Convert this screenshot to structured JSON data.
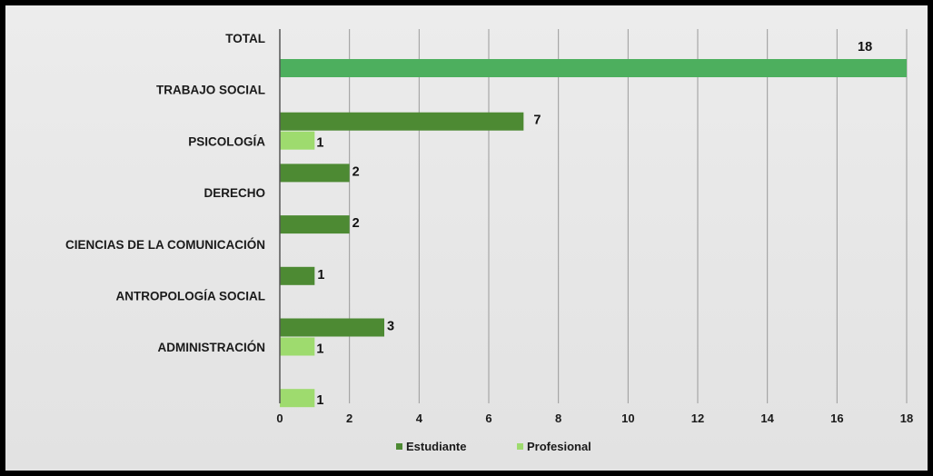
{
  "chart_data": {
    "type": "bar",
    "orientation": "horizontal",
    "title": "",
    "xlabel": "",
    "ylabel": "",
    "xlim": [
      0,
      18
    ],
    "xticks": [
      0,
      2,
      4,
      6,
      8,
      10,
      12,
      14,
      16,
      18
    ],
    "grid": true,
    "legend_position": "bottom",
    "categories": [
      "TOTAL",
      "TRABAJO SOCIAL",
      "PSICOLOGÍA",
      "DERECHO",
      "CIENCIAS DE LA COMUNICACIÓN",
      "ANTROPOLOGÍA SOCIAL",
      "ADMINISTRACIÓN"
    ],
    "total_value": 18,
    "total_color": "#4daf5e",
    "series": [
      {
        "name": "Estudiante",
        "color": "#4d8a33",
        "values": [
          null,
          7,
          2,
          2,
          1,
          3,
          null
        ]
      },
      {
        "name": "Profesional",
        "color": "#9edb6e",
        "values": [
          null,
          1,
          null,
          null,
          null,
          1,
          1
        ]
      }
    ]
  }
}
